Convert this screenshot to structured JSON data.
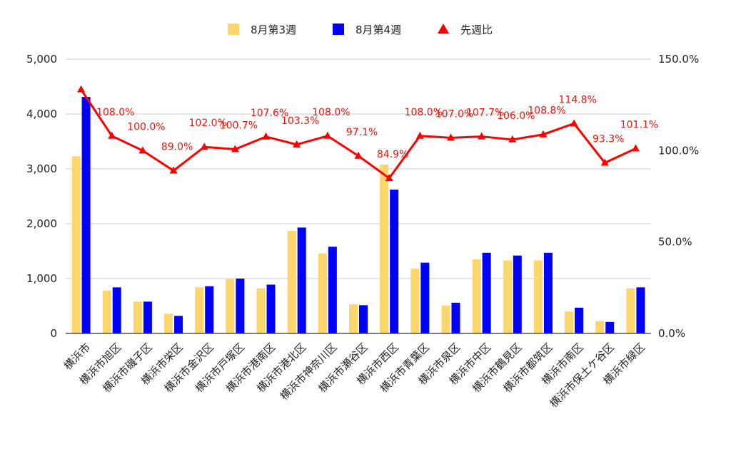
{
  "chart_data": {
    "type": "bar",
    "title": "",
    "xlabel": "",
    "ylabel": "",
    "categories": [
      "横浜市",
      "横浜市旭区",
      "横浜市磯子区",
      "横浜市栄区",
      "横浜市金沢区",
      "横浜市戸塚区",
      "横浜市港南区",
      "横浜市港北区",
      "横浜市神奈川区",
      "横浜市瀬谷区",
      "横浜市西区",
      "横浜市青葉区",
      "横浜市泉区",
      "横浜市中区",
      "横浜市鶴見区",
      "横浜市都筑区",
      "横浜市南区",
      "横浜市保土ケ谷区",
      "横浜市緑区"
    ],
    "series": [
      {
        "name": "8月第3週",
        "type": "bar",
        "axis": "left",
        "color": "#fcd66b",
        "values": [
          3230,
          780,
          580,
          360,
          840,
          990,
          820,
          1870,
          1460,
          530,
          3080,
          1180,
          510,
          1350,
          1330,
          1330,
          400,
          225,
          820
        ]
      },
      {
        "name": "8月第4週",
        "type": "bar",
        "axis": "left",
        "color": "#0000ff",
        "values": [
          4310,
          840,
          580,
          320,
          860,
          1000,
          890,
          1930,
          1580,
          515,
          2620,
          1290,
          560,
          1470,
          1420,
          1470,
          470,
          210,
          840
        ]
      },
      {
        "name": "先週比",
        "type": "line",
        "axis": "right",
        "color": "#ff0000",
        "values": [
          133.4,
          108.0,
          100.0,
          89.0,
          102.0,
          100.7,
          107.6,
          103.3,
          108.0,
          97.1,
          84.9,
          108.0,
          107.0,
          107.7,
          106.0,
          108.8,
          114.8,
          93.3,
          101.1
        ],
        "labels": [
          "",
          "108.0%",
          "100.0%",
          "89.0%",
          "102.0%",
          "100.7%",
          "107.6%",
          "103.3%",
          "108.0%",
          "97.1%",
          "84.9%",
          "108.0%",
          "107.0%",
          "107.7%",
          "106.0%",
          "108.8%",
          "114.8%",
          "93.3%",
          "101.1%"
        ]
      }
    ],
    "y_left": {
      "min": 0,
      "max": 5000,
      "ticks": [
        0,
        1000,
        2000,
        3000,
        4000,
        5000
      ],
      "tick_labels": [
        "0",
        "1,000",
        "2,000",
        "3,000",
        "4,000",
        "5,000"
      ]
    },
    "y_right": {
      "min": 0,
      "max": 150,
      "ticks": [
        0,
        50,
        100,
        150
      ],
      "tick_labels": [
        "0.0%",
        "50.0%",
        "100.0%",
        "150.0%"
      ]
    },
    "grid": true,
    "legend_position": "top-center"
  },
  "legend": {
    "item1": "8月第3週",
    "item2": "8月第4週",
    "item3": "先週比"
  },
  "colors": {
    "bar1": "#fcd66b",
    "bar2": "#0000ff",
    "line": "#ff0000",
    "label": "#e8160e",
    "grid": "#cccccc",
    "axis": "#333333"
  }
}
